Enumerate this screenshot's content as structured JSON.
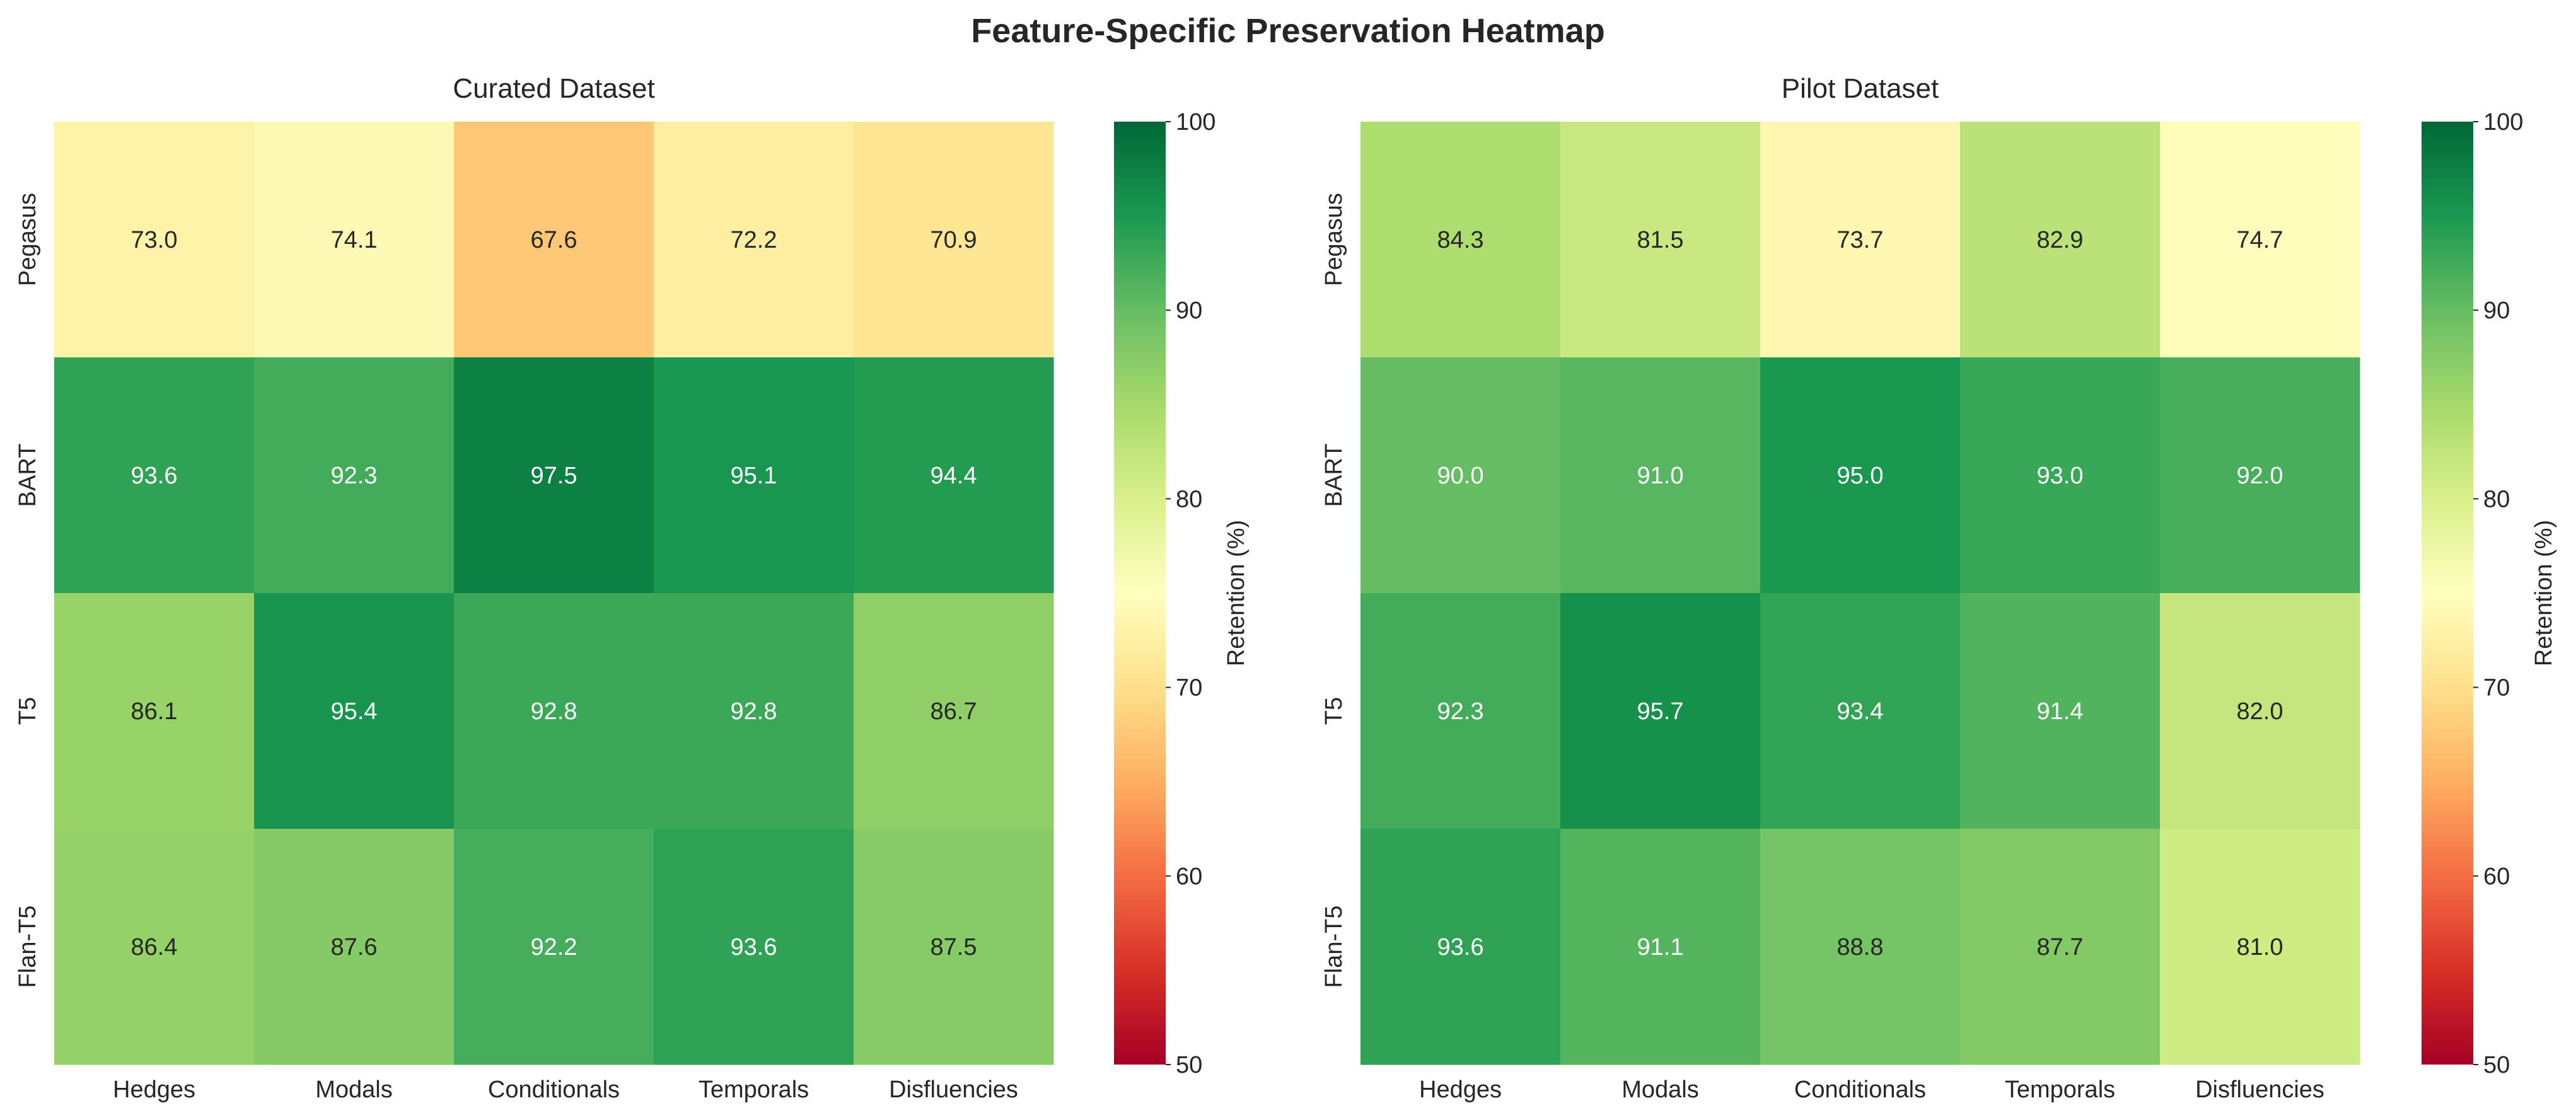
{
  "figure": {
    "title": "Feature-Specific Preservation Heatmap"
  },
  "chart_data": [
    {
      "type": "heatmap",
      "title": "Curated Dataset",
      "rows": [
        "Pegasus",
        "BART",
        "T5",
        "Flan-T5"
      ],
      "columns": [
        "Hedges",
        "Modals",
        "Conditionals",
        "Temporals",
        "Disfluencies"
      ],
      "values": [
        [
          73.0,
          74.1,
          67.6,
          72.2,
          70.9
        ],
        [
          93.6,
          92.3,
          97.5,
          95.1,
          94.4
        ],
        [
          86.1,
          95.4,
          92.8,
          92.8,
          86.7
        ],
        [
          86.4,
          87.6,
          92.2,
          93.6,
          87.5
        ]
      ],
      "colormap": "RdYlGn",
      "vmin": 50,
      "vmax": 100,
      "colorbar": {
        "label": "Retention (%)",
        "ticks": [
          "50",
          "60",
          "70",
          "80",
          "90",
          "100"
        ]
      },
      "value_format": "0.0"
    },
    {
      "type": "heatmap",
      "title": "Pilot Dataset",
      "rows": [
        "Pegasus",
        "BART",
        "T5",
        "Flan-T5"
      ],
      "columns": [
        "Hedges",
        "Modals",
        "Conditionals",
        "Temporals",
        "Disfluencies"
      ],
      "values": [
        [
          84.3,
          81.5,
          73.7,
          82.9,
          74.7
        ],
        [
          90.0,
          91.0,
          95.0,
          93.0,
          92.0
        ],
        [
          92.3,
          95.7,
          93.4,
          91.4,
          82.0
        ],
        [
          93.6,
          91.1,
          88.8,
          87.7,
          81.0
        ]
      ],
      "colormap": "RdYlGn",
      "vmin": 50,
      "vmax": 100,
      "colorbar": {
        "label": "Retention (%)",
        "ticks": [
          "50",
          "60",
          "70",
          "80",
          "90",
          "100"
        ]
      },
      "value_format": "0.0"
    }
  ]
}
